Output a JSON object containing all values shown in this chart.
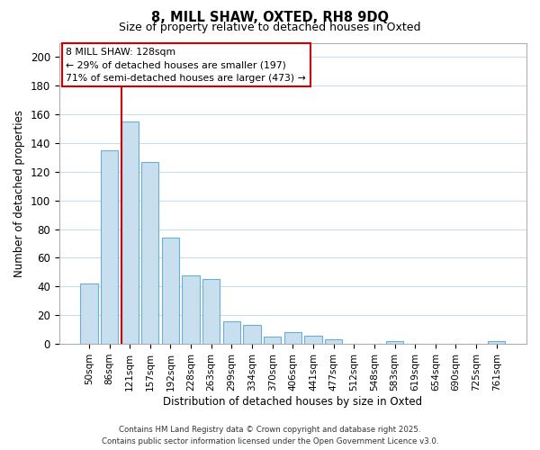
{
  "title": "8, MILL SHAW, OXTED, RH8 9DQ",
  "subtitle": "Size of property relative to detached houses in Oxted",
  "xlabel": "Distribution of detached houses by size in Oxted",
  "ylabel": "Number of detached properties",
  "categories": [
    "50sqm",
    "86sqm",
    "121sqm",
    "157sqm",
    "192sqm",
    "228sqm",
    "263sqm",
    "299sqm",
    "334sqm",
    "370sqm",
    "406sqm",
    "441sqm",
    "477sqm",
    "512sqm",
    "548sqm",
    "583sqm",
    "619sqm",
    "654sqm",
    "690sqm",
    "725sqm",
    "761sqm"
  ],
  "values": [
    42,
    135,
    155,
    127,
    74,
    48,
    45,
    16,
    13,
    5,
    8,
    6,
    3,
    0,
    0,
    2,
    0,
    0,
    0,
    0,
    2
  ],
  "bar_color": "#c8dff0",
  "bar_edge_color": "#6baed6",
  "vline_color": "#cc0000",
  "vline_x_index": 2,
  "annotation_box_text_line1": "8 MILL SHAW: 128sqm",
  "annotation_box_text_line2": "← 29% of detached houses are smaller (197)",
  "annotation_box_text_line3": "71% of semi-detached houses are larger (473) →",
  "ylim": [
    0,
    210
  ],
  "yticks": [
    0,
    20,
    40,
    60,
    80,
    100,
    120,
    140,
    160,
    180,
    200
  ],
  "footer_line1": "Contains HM Land Registry data © Crown copyright and database right 2025.",
  "footer_line2": "Contains public sector information licensed under the Open Government Licence v3.0.",
  "background_color": "#ffffff",
  "grid_color": "#ccdce8",
  "annotation_box_edge_color": "#cc0000",
  "annotation_box_face_color": "#ffffff"
}
